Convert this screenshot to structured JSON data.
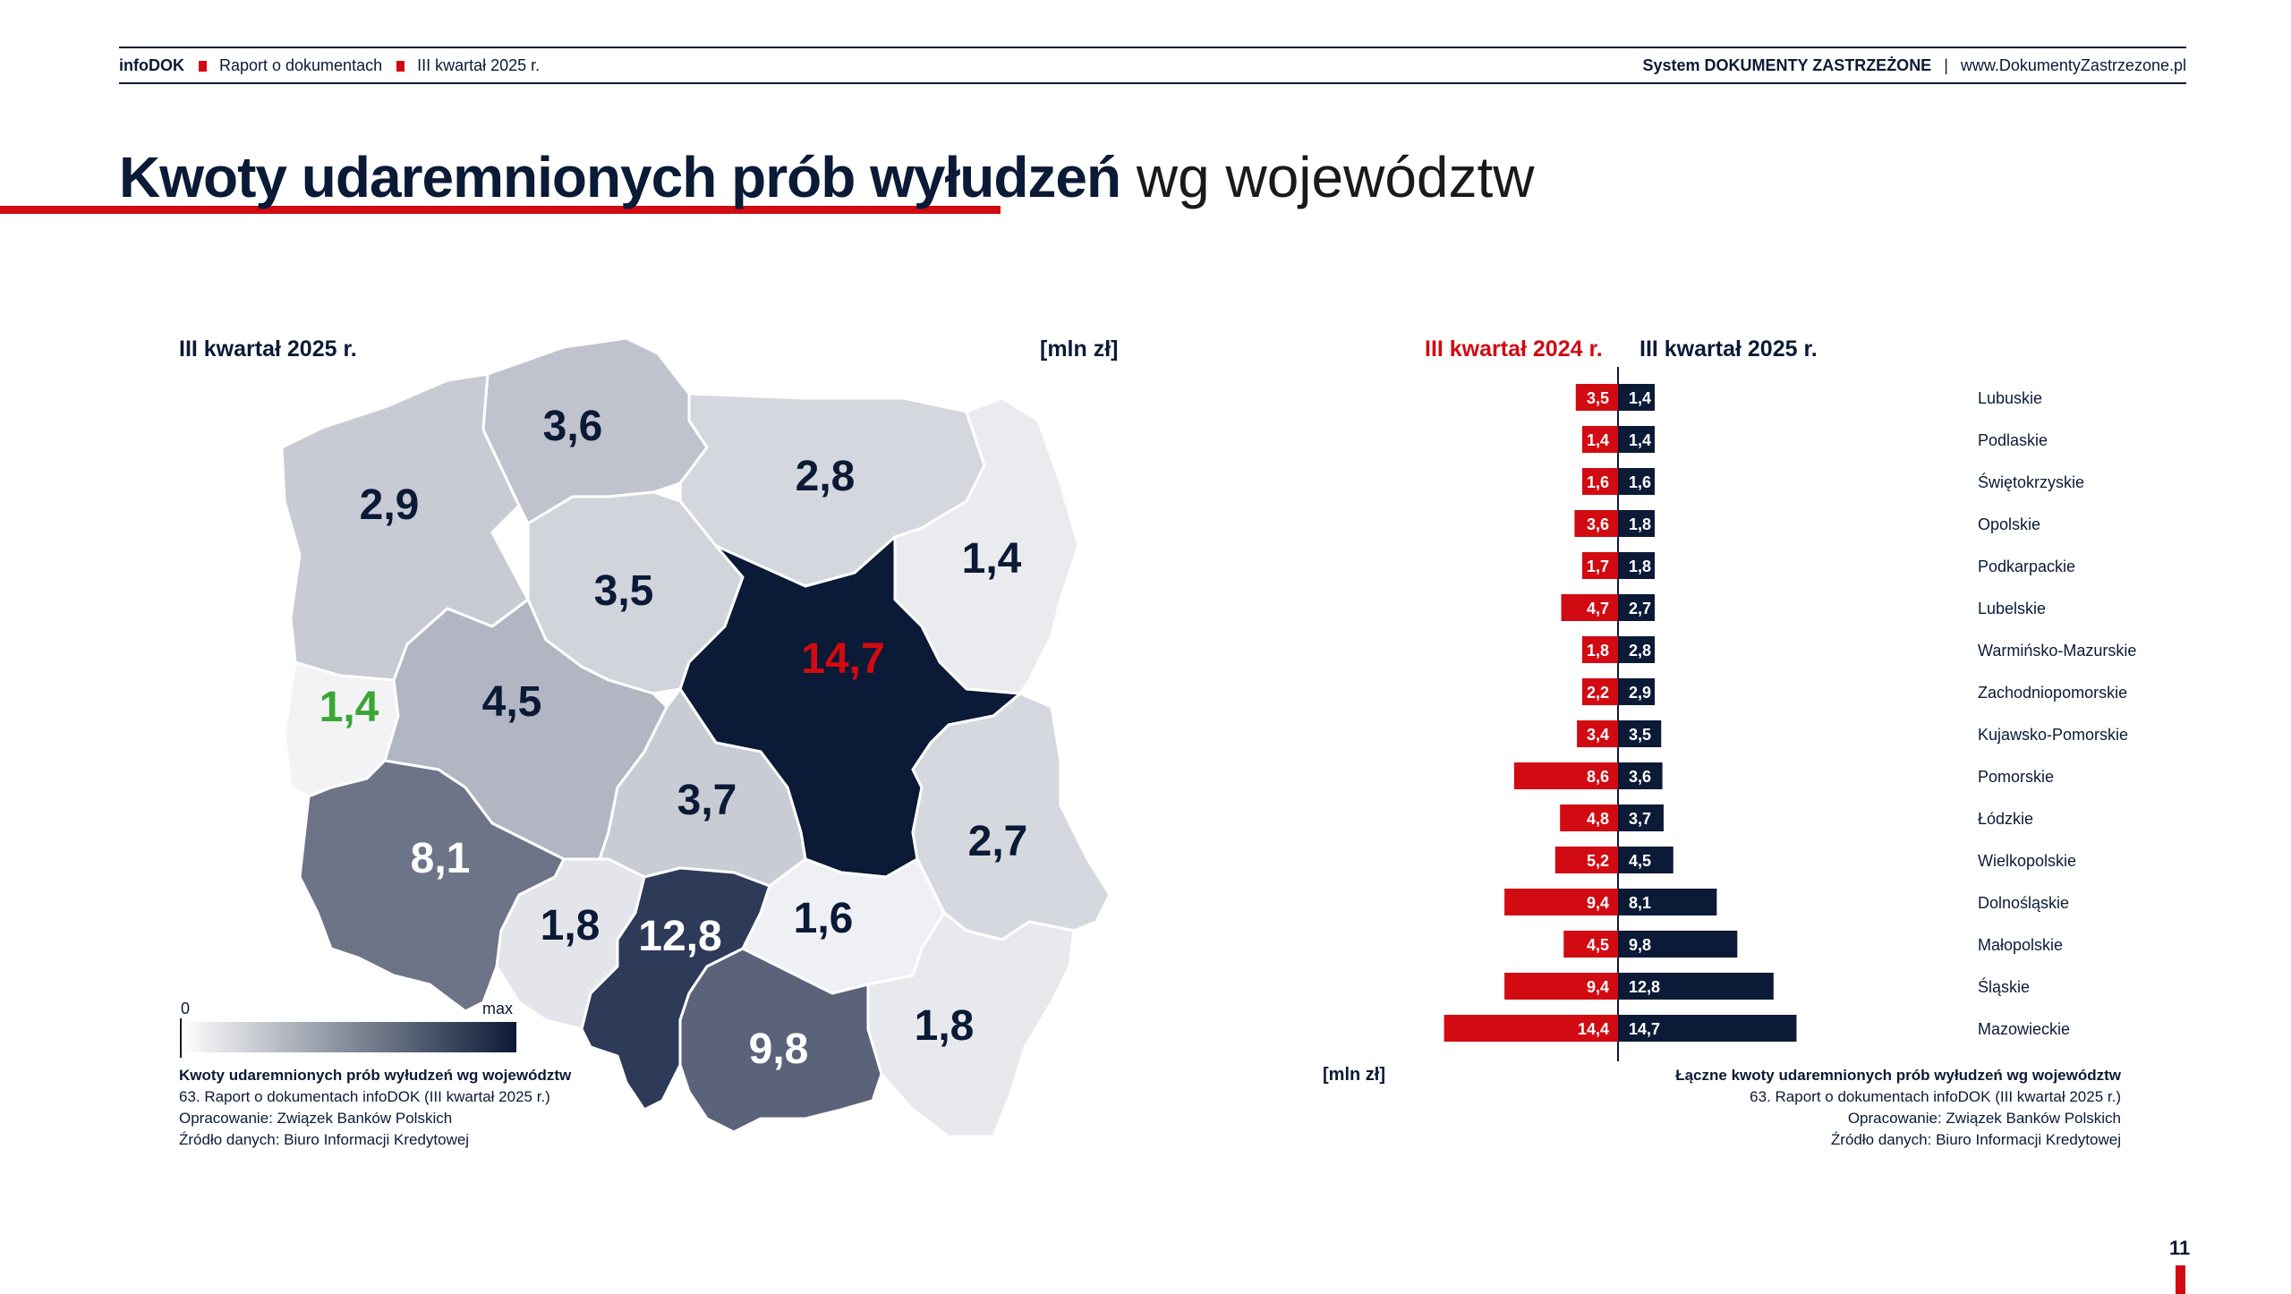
{
  "header": {
    "brand": "infoDOK",
    "report": "Raport o dokumentach",
    "quarter": "III kwartał 2025 r.",
    "system": "System DOKUMENTY ZASTRZEŻONE",
    "separator": "|",
    "url": "www.DokumentyZastrzezone.pl"
  },
  "title": {
    "bold": "Kwoty udaremnionych prób wyłudzeń",
    "light": "wg województw"
  },
  "page_number": "11",
  "colors": {
    "accent_red": "#d20a11",
    "navy": "#0b1a36",
    "green_min": "#3aa635"
  },
  "map": {
    "period_label": "III kwartał 2025 r.",
    "unit_label": "[mln zł]",
    "legend": {
      "min_label": "0",
      "max_label": "max"
    },
    "caption": {
      "title": "Kwoty udaremnionych prób wyłudzeń wg województw",
      "line1": "63. Raport o dokumentach infoDOK (III kwartał 2025 r.)",
      "line2": "Opracowanie: Związek Banków Polskich",
      "line3": "Źródło danych: Biuro Informacji Kredytowej"
    }
  },
  "bars": {
    "left_label": "III kwartał 2024 r.",
    "right_label": "III kwartał 2025 r.",
    "unit_label": "[mln zł]",
    "caption": {
      "title": "Łączne kwoty udaremnionych prób wyłudzeń wg województw",
      "line1": "63. Raport o dokumentach infoDOK (III kwartał 2025 r.)",
      "line2": "Opracowanie: Związek Banków Polskich",
      "line3": "Źródło danych: Biuro Informacji Kredytowej"
    }
  },
  "chart_data": [
    {
      "type": "choropleth",
      "region_values": [
        {
          "region": "Zachodniopomorskie",
          "value": "2,9"
        },
        {
          "region": "Pomorskie",
          "value": "3,6"
        },
        {
          "region": "Warmińsko-Mazurskie",
          "value": "2,8"
        },
        {
          "region": "Podlaskie",
          "value": "1,4"
        },
        {
          "region": "Kujawsko-Pomorskie",
          "value": "3,5"
        },
        {
          "region": "Lubuskie",
          "value": "1,4"
        },
        {
          "region": "Wielkopolskie",
          "value": "4,5"
        },
        {
          "region": "Mazowieckie",
          "value": "14,7"
        },
        {
          "region": "Łódzkie",
          "value": "3,7"
        },
        {
          "region": "Lubelskie",
          "value": "2,7"
        },
        {
          "region": "Dolnośląskie",
          "value": "8,1"
        },
        {
          "region": "Opolskie",
          "value": "1,8"
        },
        {
          "region": "Śląskie",
          "value": "12,8"
        },
        {
          "region": "Świętokrzyskie",
          "value": "1,6"
        },
        {
          "region": "Małopolskie",
          "value": "9,8"
        },
        {
          "region": "Podkarpackie",
          "value": "1,8"
        }
      ]
    },
    {
      "type": "bar",
      "orientation": "horizontal-butterfly",
      "categories": [
        "Lubuskie",
        "Podlaskie",
        "Świętokrzyskie",
        "Opolskie",
        "Podkarpackie",
        "Lubelskie",
        "Warmińsko-Mazurskie",
        "Zachodniopomorskie",
        "Kujawsko-Pomorskie",
        "Pomorskie",
        "Łódzkie",
        "Wielkopolskie",
        "Dolnośląskie",
        "Małopolskie",
        "Śląskie",
        "Mazowieckie"
      ],
      "series": [
        {
          "name": "III kwartał 2024 r.",
          "values": [
            3.5,
            1.4,
            1.6,
            3.6,
            1.7,
            4.7,
            1.8,
            2.2,
            3.4,
            8.6,
            4.8,
            5.2,
            9.4,
            4.5,
            9.4,
            14.4
          ],
          "labels": [
            "3,5",
            "1,4",
            "1,6",
            "3,6",
            "1,7",
            "4,7",
            "1,8",
            "2,2",
            "3,4",
            "8,6",
            "4,8",
            "5,2",
            "9,4",
            "4,5",
            "9,4",
            "14,4"
          ]
        },
        {
          "name": "III kwartał 2025 r.",
          "values": [
            1.4,
            1.4,
            1.6,
            1.8,
            1.8,
            2.7,
            2.8,
            2.9,
            3.5,
            3.6,
            3.7,
            4.5,
            8.1,
            9.8,
            12.8,
            14.7
          ],
          "labels": [
            "1,4",
            "1,4",
            "1,6",
            "1,8",
            "1,8",
            "2,7",
            "2,8",
            "2,9",
            "3,5",
            "3,6",
            "3,7",
            "4,5",
            "8,1",
            "9,8",
            "12,8",
            "14,7"
          ]
        }
      ]
    }
  ]
}
